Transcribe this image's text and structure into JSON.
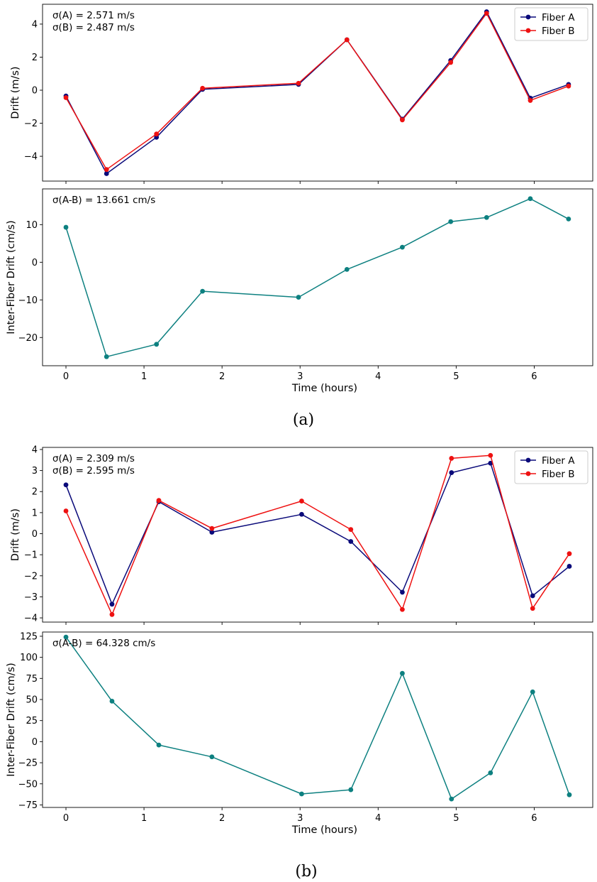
{
  "chart_data": [
    {
      "type": "line",
      "panel": "a-top",
      "xlabel": "",
      "ylabel": "Drift (m/s)",
      "xlim": [
        -0.3,
        6.75
      ],
      "ylim": [
        -5.5,
        5.2
      ],
      "xticks": [
        0,
        1,
        2,
        3,
        4,
        5,
        6
      ],
      "yticks": [
        -4,
        -2,
        0,
        2,
        4
      ],
      "show_x_tick_labels": false,
      "annotations": [
        "σ(A) = 2.571 m/s",
        "σ(B) = 2.487 m/s"
      ],
      "legend": "top-right",
      "x": [
        0,
        0.52,
        1.16,
        1.75,
        2.98,
        3.6,
        4.31,
        4.93,
        5.39,
        5.95,
        6.44
      ],
      "series": [
        {
          "name": "Fiber A",
          "color": "#0a0a7a",
          "values": [
            -0.35,
            -5.05,
            -2.85,
            0.05,
            0.35,
            3.05,
            -1.75,
            1.8,
            4.75,
            -0.48,
            0.35
          ]
        },
        {
          "name": "Fiber B",
          "color": "#ee1111",
          "values": [
            -0.45,
            -4.8,
            -2.65,
            0.12,
            0.42,
            3.05,
            -1.8,
            1.68,
            4.65,
            -0.62,
            0.25
          ]
        }
      ]
    },
    {
      "type": "line",
      "panel": "a-bottom",
      "xlabel": "Time (hours)",
      "ylabel": "Inter-Fiber Drift (cm/s)",
      "xlim": [
        -0.3,
        6.75
      ],
      "ylim": [
        -27.5,
        19.5
      ],
      "xticks": [
        0,
        1,
        2,
        3,
        4,
        5,
        6
      ],
      "yticks": [
        -20,
        -10,
        0,
        10
      ],
      "show_x_tick_labels": true,
      "annotations": [
        "σ(A-B) = 13.661 cm/s"
      ],
      "x": [
        0,
        0.52,
        1.16,
        1.75,
        2.98,
        3.6,
        4.31,
        4.93,
        5.39,
        5.95,
        6.44
      ],
      "series": [
        {
          "color": "#0d8080",
          "values": [
            9.3,
            -25.1,
            -21.8,
            -7.7,
            -9.3,
            -1.9,
            4.0,
            10.8,
            11.9,
            16.9,
            11.5
          ]
        }
      ]
    },
    {
      "type": "line",
      "panel": "b-top",
      "xlabel": "",
      "ylabel": "Drift (m/s)",
      "xlim": [
        -0.3,
        6.75
      ],
      "ylim": [
        -4.2,
        4.1
      ],
      "xticks": [
        0,
        1,
        2,
        3,
        4,
        5,
        6
      ],
      "yticks": [
        -4,
        -3,
        -2,
        -1,
        0,
        1,
        2,
        3,
        4
      ],
      "show_x_tick_labels": false,
      "annotations": [
        "σ(A) = 2.309 m/s",
        "σ(B) = 2.595 m/s"
      ],
      "legend": "top-right",
      "x": [
        0,
        0.59,
        1.19,
        1.87,
        3.02,
        3.65,
        4.31,
        4.94,
        5.44,
        5.98,
        6.45
      ],
      "series": [
        {
          "name": "Fiber A",
          "color": "#0a0a7a",
          "values": [
            2.32,
            -3.35,
            1.52,
            0.07,
            0.92,
            -0.37,
            -2.78,
            2.9,
            3.35,
            -2.95,
            -1.55
          ]
        },
        {
          "name": "Fiber B",
          "color": "#ee1111",
          "values": [
            1.08,
            -3.84,
            1.58,
            0.25,
            1.55,
            0.2,
            -3.6,
            3.58,
            3.72,
            -3.55,
            -0.95
          ]
        }
      ]
    },
    {
      "type": "line",
      "panel": "b-bottom",
      "xlabel": "Time (hours)",
      "ylabel": "Inter-Fiber Drift (cm/s)",
      "xlim": [
        -0.3,
        6.75
      ],
      "ylim": [
        -78,
        130
      ],
      "xticks": [
        0,
        1,
        2,
        3,
        4,
        5,
        6
      ],
      "yticks": [
        -75,
        -50,
        -25,
        0,
        25,
        50,
        75,
        100,
        125
      ],
      "show_x_tick_labels": true,
      "annotations": [
        "σ(A-B) = 64.328 cm/s"
      ],
      "x": [
        0,
        0.59,
        1.19,
        1.87,
        3.02,
        3.65,
        4.31,
        4.94,
        5.44,
        5.98,
        6.45
      ],
      "series": [
        {
          "color": "#0d8080",
          "values": [
            124,
            48,
            -4,
            -18,
            -62,
            -57,
            81,
            -68,
            -37,
            59,
            -63
          ]
        }
      ]
    }
  ],
  "captions": [
    "(a)",
    "(b)"
  ]
}
